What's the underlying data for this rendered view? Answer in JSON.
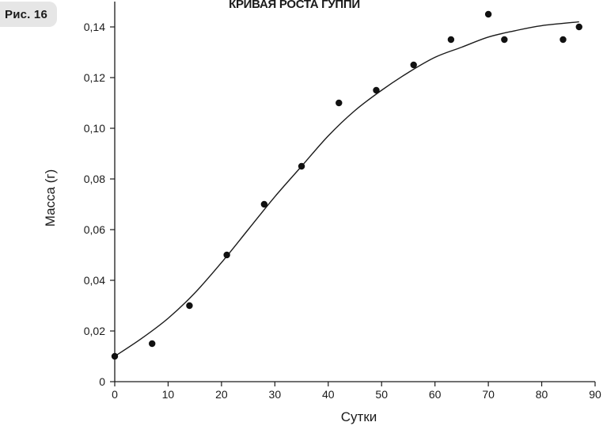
{
  "figure_label": "Рис. 16",
  "chart_data": {
    "type": "scatter",
    "title": "КРИВАЯ РОСТА ГУППИ",
    "xlabel": "Сутки",
    "ylabel": "Масса (г)",
    "xlim": [
      0,
      90
    ],
    "ylim": [
      0,
      0.15
    ],
    "x_ticks": [
      0,
      10,
      20,
      30,
      40,
      50,
      60,
      70,
      80,
      90
    ],
    "x_tick_labels": [
      "0",
      "10",
      "20",
      "30",
      "40",
      "50",
      "60",
      "70",
      "80",
      "90"
    ],
    "y_ticks": [
      0,
      0.02,
      0.04,
      0.06,
      0.08,
      0.1,
      0.12,
      0.14
    ],
    "y_tick_labels": [
      "0",
      "0,02",
      "0,04",
      "0,06",
      "0,08",
      "0,10",
      "0,12",
      "0,14"
    ],
    "grid": false,
    "points": [
      {
        "x": 0,
        "y": 0.01
      },
      {
        "x": 7,
        "y": 0.015
      },
      {
        "x": 14,
        "y": 0.03
      },
      {
        "x": 21,
        "y": 0.05
      },
      {
        "x": 28,
        "y": 0.07
      },
      {
        "x": 35,
        "y": 0.085
      },
      {
        "x": 42,
        "y": 0.11
      },
      {
        "x": 49,
        "y": 0.115
      },
      {
        "x": 56,
        "y": 0.125
      },
      {
        "x": 63,
        "y": 0.135
      },
      {
        "x": 70,
        "y": 0.145
      },
      {
        "x": 73,
        "y": 0.135
      },
      {
        "x": 84,
        "y": 0.135
      },
      {
        "x": 87,
        "y": 0.14
      }
    ],
    "fit_curve": {
      "type": "line",
      "x": [
        0,
        5,
        10,
        15,
        20,
        25,
        30,
        35,
        40,
        45,
        50,
        55,
        60,
        65,
        70,
        75,
        80,
        87
      ],
      "y": [
        0.01,
        0.017,
        0.025,
        0.035,
        0.047,
        0.06,
        0.073,
        0.085,
        0.097,
        0.107,
        0.115,
        0.122,
        0.128,
        0.132,
        0.136,
        0.1385,
        0.1405,
        0.142
      ]
    }
  }
}
